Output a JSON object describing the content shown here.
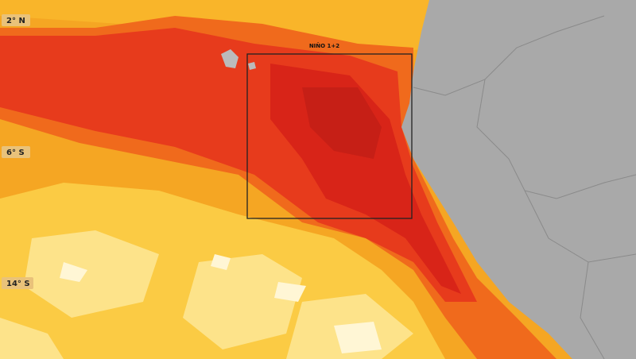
{
  "latitude_labels": [
    "2° N",
    "6° S",
    "14° S"
  ],
  "regions": [
    {
      "label": "NIÑO 1+2"
    }
  ]
}
